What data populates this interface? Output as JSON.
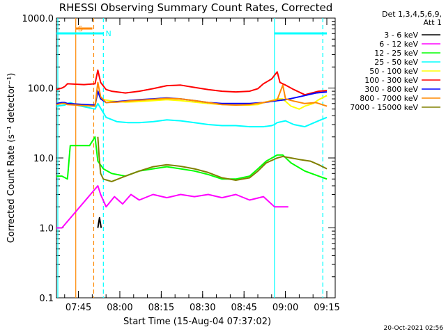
{
  "chart_data": {
    "type": "line",
    "title": "RHESSI Observing Summary Count Rates, Corrected",
    "xlabel": "Start Time (15-Aug-04 07:37:02)",
    "ylabel": "Corrected Count Rate (s⁻¹ detector⁻¹)",
    "y_scale": "log",
    "ylim": [
      0.1,
      1000
    ],
    "y_ticks": [
      "0.1",
      "1.0",
      "10.0",
      "100.0",
      "1000.0"
    ],
    "xlim_minutes": [
      0,
      101
    ],
    "x_ticks": [
      {
        "label": "07:45",
        "min": 7.97
      },
      {
        "label": "08:00",
        "min": 22.97
      },
      {
        "label": "08:15",
        "min": 37.97
      },
      {
        "label": "08:30",
        "min": 52.97
      },
      {
        "label": "08:45",
        "min": 67.97
      },
      {
        "label": "09:00",
        "min": 82.97
      },
      {
        "label": "09:15",
        "min": 97.97
      }
    ],
    "legend_header": [
      "Det 1,3,4,5,6,9,",
      "Att 1"
    ],
    "legend_position": "top-right",
    "series": [
      {
        "name": "3 - 6 keV",
        "color": "#000000",
        "x": [
          15,
          15.6,
          16.2
        ],
        "y": [
          1.0,
          1.4,
          1.0
        ]
      },
      {
        "name": "6 - 12 keV",
        "color": "#ff00ff",
        "x": [
          0,
          2,
          15,
          16,
          18,
          21,
          24,
          27,
          30,
          35,
          40,
          45,
          50,
          55,
          60,
          65,
          70,
          75,
          79,
          82,
          84
        ],
        "y": [
          1.0,
          1.0,
          4.0,
          3.0,
          2.0,
          2.8,
          2.2,
          3.0,
          2.5,
          3.0,
          2.7,
          3.0,
          2.8,
          3.0,
          2.7,
          3.0,
          2.5,
          2.8,
          2.0,
          2.0,
          2.0
        ]
      },
      {
        "name": "12 - 25 keV",
        "color": "#00ff00",
        "x": [
          0,
          2,
          4,
          5,
          6,
          8,
          10,
          12,
          14,
          15,
          17,
          20,
          25,
          30,
          35,
          40,
          45,
          50,
          55,
          60,
          65,
          70,
          73,
          76,
          80,
          82,
          85,
          90,
          95,
          98
        ],
        "y": [
          5.5,
          5.5,
          5.0,
          15,
          15,
          15,
          15,
          15,
          20,
          9.0,
          7.0,
          6.0,
          5.5,
          6.5,
          7.0,
          7.5,
          7.0,
          6.5,
          5.8,
          5.0,
          5.0,
          5.5,
          7.0,
          9.0,
          11.0,
          11.0,
          8.5,
          6.5,
          5.5,
          5.0
        ]
      },
      {
        "name": "25 - 50 keV",
        "color": "#00ffff",
        "x": [
          0,
          3,
          4,
          5,
          6,
          7,
          8,
          10,
          12,
          14,
          15,
          18,
          22,
          26,
          30,
          35,
          40,
          45,
          50,
          55,
          60,
          65,
          70,
          75,
          78,
          79,
          80,
          83,
          86,
          90,
          95,
          98
        ],
        "y": [
          55,
          57,
          60,
          62,
          60,
          58,
          56,
          54,
          52,
          50,
          60,
          38,
          33,
          32,
          32,
          33,
          35,
          34,
          32,
          30,
          29,
          29,
          28,
          28,
          29,
          30,
          32,
          34,
          30,
          28,
          34,
          38
        ]
      },
      {
        "name": "50 - 100 keV",
        "color": "#ffff00",
        "x": [
          0,
          3,
          4,
          10,
          14,
          15,
          16,
          20,
          25,
          30,
          35,
          40,
          45,
          50,
          55,
          60,
          65,
          70,
          73,
          75,
          78,
          80,
          82,
          85,
          88,
          90,
          93,
          95,
          98
        ],
        "y": [
          60,
          62,
          60,
          58,
          55,
          90,
          70,
          65,
          63,
          64,
          66,
          68,
          66,
          63,
          60,
          58,
          57,
          57,
          58,
          62,
          66,
          70,
          70,
          55,
          50,
          55,
          60,
          68,
          78
        ]
      },
      {
        "name": "100 - 300 keV",
        "color": "#ff0000",
        "x": [
          0,
          2,
          3,
          4,
          10,
          14,
          15,
          16,
          18,
          20,
          25,
          30,
          35,
          40,
          45,
          50,
          55,
          60,
          65,
          70,
          73,
          75,
          78,
          80,
          81,
          83,
          86,
          90,
          95,
          98
        ],
        "y": [
          95,
          100,
          105,
          115,
          112,
          115,
          180,
          120,
          95,
          90,
          85,
          90,
          98,
          108,
          110,
          102,
          95,
          90,
          88,
          90,
          98,
          115,
          135,
          170,
          120,
          110,
          95,
          80,
          90,
          92
        ]
      },
      {
        "name": "300 - 800 keV",
        "color": "#0000ff",
        "x": [
          0,
          2,
          3,
          4,
          10,
          14,
          15,
          16,
          18,
          22,
          26,
          30,
          35,
          40,
          45,
          50,
          55,
          60,
          65,
          70,
          75,
          80,
          83,
          86,
          90,
          94,
          98
        ],
        "y": [
          60,
          62,
          62,
          60,
          58,
          57,
          90,
          70,
          62,
          64,
          66,
          68,
          70,
          72,
          70,
          66,
          62,
          60,
          60,
          60,
          62,
          66,
          68,
          72,
          78,
          85,
          88
        ]
      },
      {
        "name": "800 - 7000 keV",
        "color": "#ff8800",
        "x": [
          0,
          2,
          3,
          4,
          10,
          14,
          15,
          16,
          18,
          22,
          26,
          30,
          35,
          40,
          45,
          50,
          55,
          60,
          65,
          70,
          75,
          80,
          82,
          83,
          86,
          90,
          94,
          98
        ],
        "y": [
          58,
          60,
          60,
          58,
          56,
          55,
          120,
          75,
          62,
          63,
          65,
          67,
          69,
          71,
          70,
          66,
          62,
          58,
          57,
          58,
          62,
          68,
          110,
          70,
          65,
          60,
          62,
          55
        ]
      },
      {
        "name": "7000 - 15000 keV",
        "color": "#808000",
        "x": [
          15,
          15.5,
          16,
          17,
          20,
          25,
          30,
          35,
          40,
          45,
          50,
          55,
          60,
          65,
          70,
          73,
          76,
          80,
          82,
          85,
          88,
          92,
          95,
          98
        ],
        "y": [
          20,
          10,
          6.0,
          5.0,
          4.6,
          5.5,
          6.5,
          7.5,
          8.0,
          7.6,
          7.0,
          6.2,
          5.2,
          4.8,
          5.2,
          6.5,
          8.5,
          10,
          10.5,
          10,
          9.5,
          9.0,
          8.0,
          7.0
        ]
      }
    ],
    "annotations": [
      {
        "label": "S",
        "color": "#ff8800"
      },
      {
        "label": "N",
        "color": "#00ffff"
      }
    ],
    "vertical_lines": [
      {
        "min": 7.0,
        "color": "#ff8800",
        "style": "solid"
      },
      {
        "min": 13.5,
        "color": "#ff8800",
        "style": "dashed"
      },
      {
        "min": 17.0,
        "color": "#00ffff",
        "style": "dashed"
      },
      {
        "min": 79.0,
        "color": "#00ffff",
        "style": "solid"
      },
      {
        "min": 96.5,
        "color": "#00ffff",
        "style": "dashed"
      },
      {
        "min": 0.5,
        "color": "#00ffff",
        "style": "solid"
      }
    ],
    "status_bars": [
      {
        "name": "S",
        "x": [
          7.0,
          13.0
        ],
        "color": "#ff8800"
      },
      {
        "name": "N",
        "x": [
          0.0,
          17.0
        ],
        "color": "#00ffff"
      },
      {
        "name": "N",
        "x": [
          79.0,
          98.0
        ],
        "color": "#00ffff"
      }
    ]
  },
  "timestamp": "20-Oct-2021 02:56"
}
